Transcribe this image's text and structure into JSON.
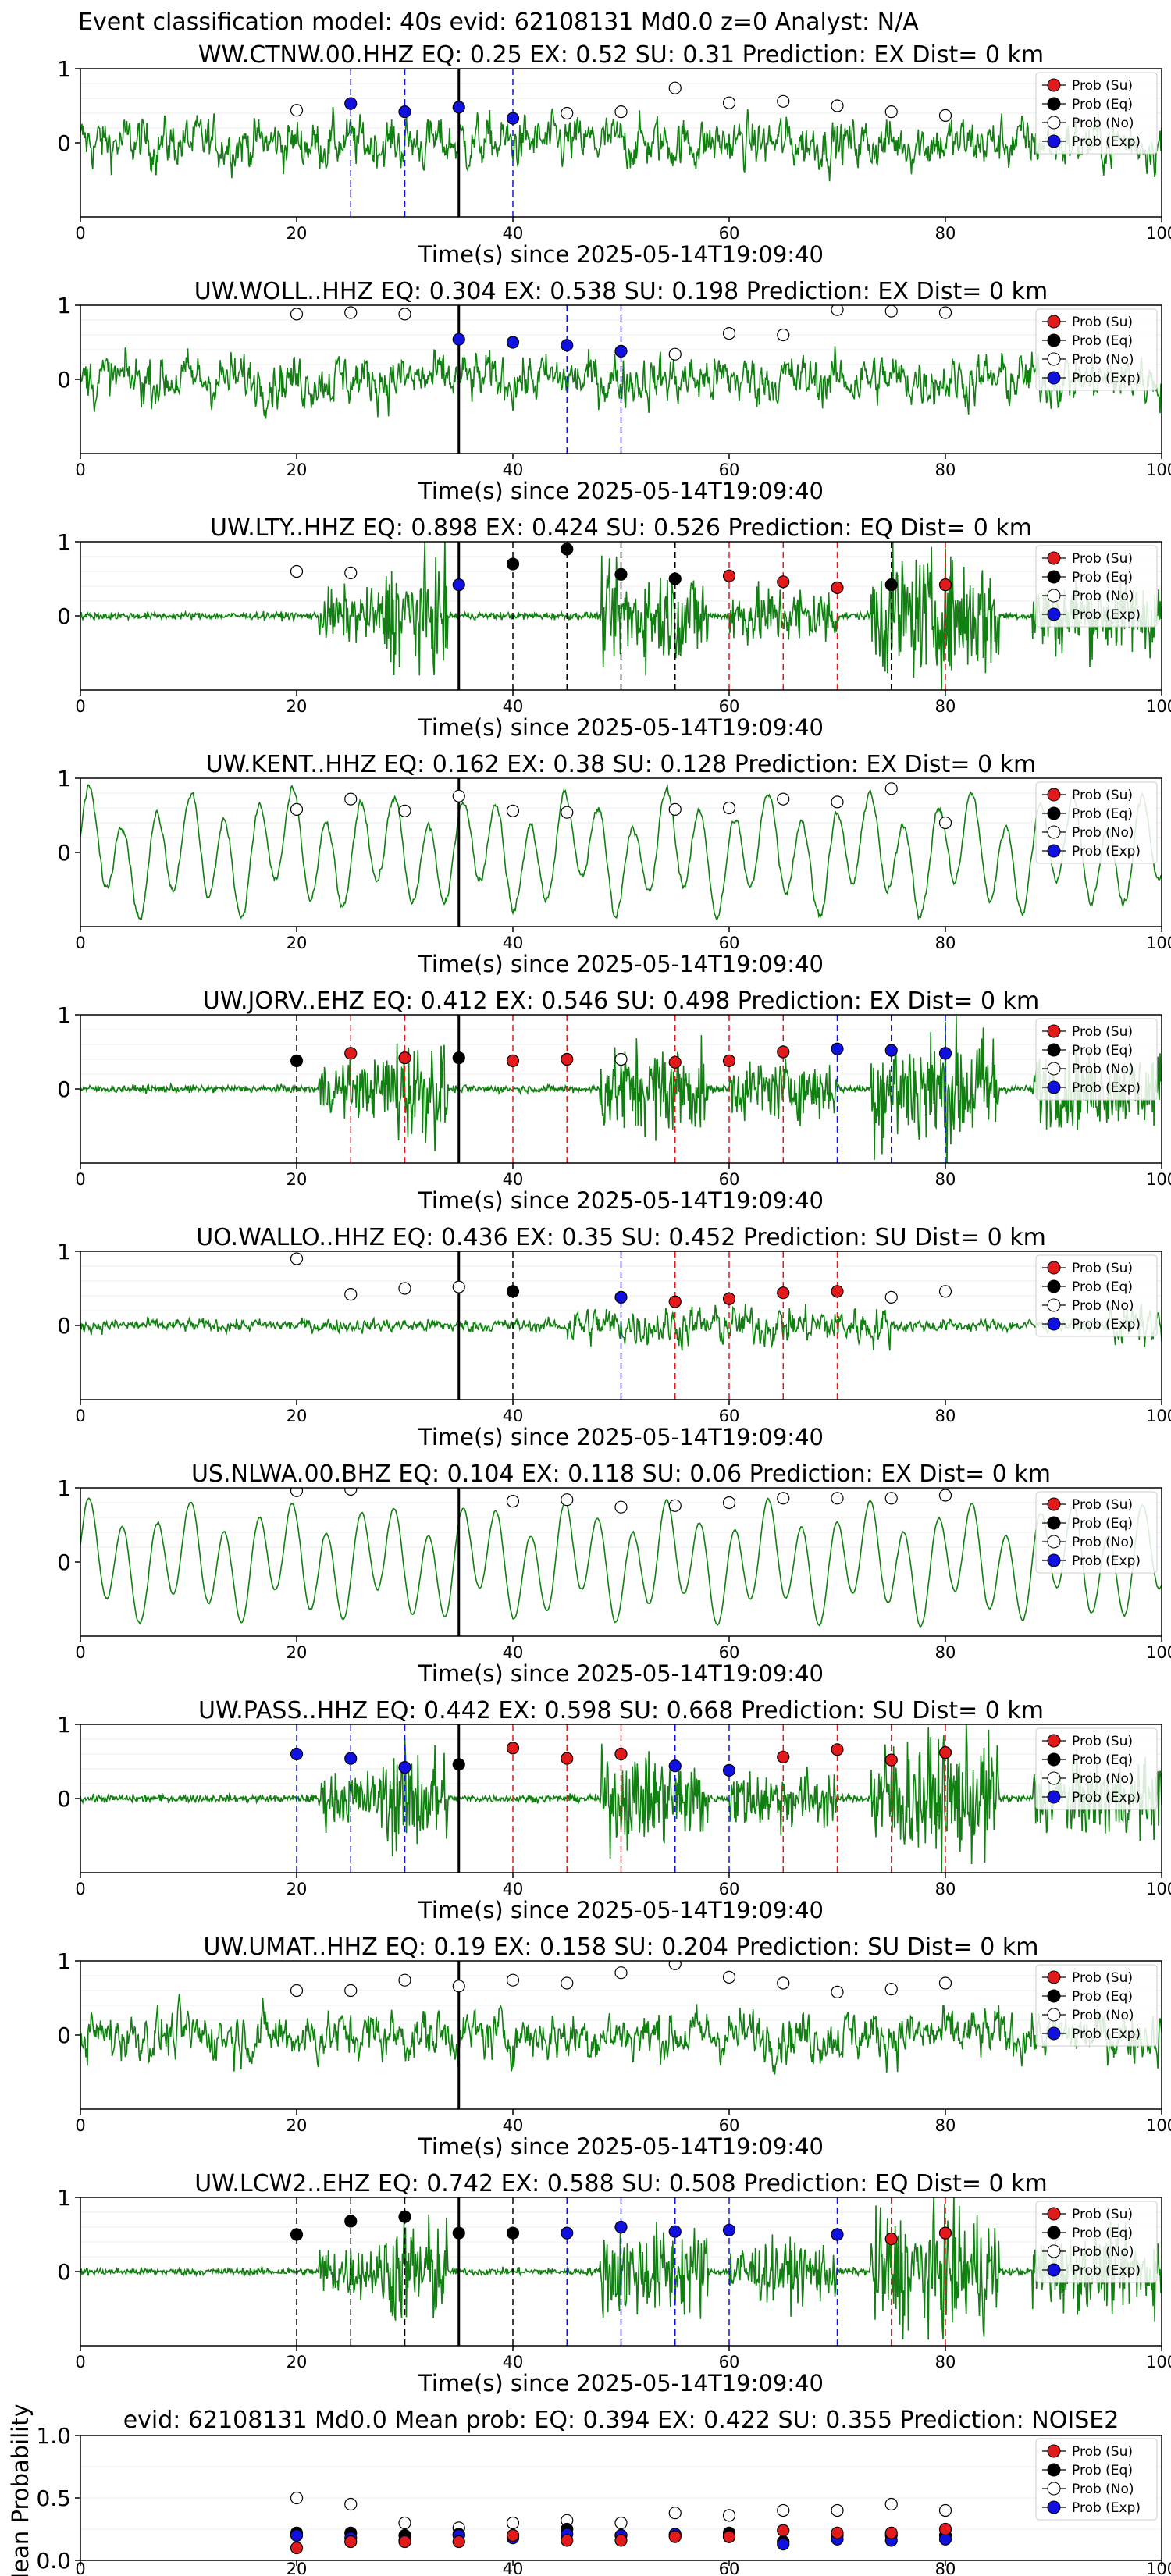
{
  "figure": {
    "suptitle": "Event classification model: 40s evid: 62108131 Md0.0 z=0 Analyst: N/A",
    "xlabel": "Time(s) since 2025-05-14T19:09:40",
    "x_ticks": [
      0,
      20,
      40,
      60,
      80,
      100
    ],
    "event_line_x": 35,
    "colors": {
      "su": "#e31a1c",
      "eq": "#000000",
      "no": "#ffffff",
      "exp": "#1010e0",
      "trace": "#108010"
    }
  },
  "legend": {
    "items": [
      "Prob (Su)",
      "Prob (Eq)",
      "Prob (No)",
      "Prob (Exp)"
    ]
  },
  "chart_data": [
    {
      "type": "scatter",
      "title": "WW.CTNW.00.HHZ   EQ: 0.25   EX: 0.52   SU: 0.31   Prediction: EX    Dist= 0 km",
      "trace_style": "noisy",
      "xlim": [
        0,
        100
      ],
      "ylim_ticks": [
        0,
        1
      ],
      "points": [
        [
          20,
          0.44,
          "no"
        ],
        [
          25,
          0.53,
          "exp"
        ],
        [
          30,
          0.42,
          "exp"
        ],
        [
          35,
          0.48,
          "exp"
        ],
        [
          40,
          0.33,
          "exp"
        ],
        [
          45,
          0.4,
          "no"
        ],
        [
          50,
          0.42,
          "no"
        ],
        [
          55,
          0.74,
          "no"
        ],
        [
          60,
          0.54,
          "no"
        ],
        [
          65,
          0.56,
          "no"
        ],
        [
          70,
          0.5,
          "no"
        ],
        [
          75,
          0.42,
          "no"
        ],
        [
          80,
          0.37,
          "no"
        ]
      ],
      "vlines": [
        [
          25,
          "exp"
        ],
        [
          30,
          "exp"
        ],
        [
          40,
          "exp"
        ]
      ]
    },
    {
      "type": "scatter",
      "title": "UW.WOLL..HHZ   EQ: 0.304  EX: 0.538  SU: 0.198   Prediction: EX    Dist= 0 km",
      "trace_style": "noisy",
      "xlim": [
        0,
        100
      ],
      "ylim_ticks": [
        0,
        1
      ],
      "points": [
        [
          20,
          0.88,
          "no"
        ],
        [
          25,
          0.9,
          "no"
        ],
        [
          30,
          0.88,
          "no"
        ],
        [
          35,
          0.54,
          "exp"
        ],
        [
          40,
          0.5,
          "exp"
        ],
        [
          45,
          0.46,
          "exp"
        ],
        [
          50,
          0.38,
          "exp"
        ],
        [
          55,
          0.34,
          "no"
        ],
        [
          60,
          0.62,
          "no"
        ],
        [
          65,
          0.6,
          "no"
        ],
        [
          70,
          0.94,
          "no"
        ],
        [
          75,
          0.92,
          "no"
        ],
        [
          80,
          0.9,
          "no"
        ]
      ],
      "vlines": [
        [
          45,
          "exp"
        ],
        [
          50,
          "exp"
        ]
      ]
    },
    {
      "type": "scatter",
      "title": "UW.LTY..HHZ   EQ: 0.898  EX: 0.424  SU: 0.526   Prediction: EQ    Dist= 0 km",
      "trace_style": "quiet_burst",
      "xlim": [
        0,
        100
      ],
      "ylim_ticks": [
        0,
        1
      ],
      "points": [
        [
          20,
          0.6,
          "no"
        ],
        [
          25,
          0.58,
          "no"
        ],
        [
          35,
          0.42,
          "exp"
        ],
        [
          40,
          0.7,
          "eq"
        ],
        [
          45,
          0.9,
          "eq"
        ],
        [
          50,
          0.56,
          "eq"
        ],
        [
          55,
          0.5,
          "eq"
        ],
        [
          60,
          0.54,
          "su"
        ],
        [
          65,
          0.46,
          "su"
        ],
        [
          70,
          0.38,
          "su"
        ],
        [
          75,
          0.42,
          "eq"
        ],
        [
          80,
          0.42,
          "su"
        ]
      ],
      "vlines": [
        [
          40,
          "eq"
        ],
        [
          45,
          "eq"
        ],
        [
          50,
          "eq"
        ],
        [
          55,
          "eq"
        ],
        [
          60,
          "su"
        ],
        [
          65,
          "su"
        ],
        [
          70,
          "su"
        ],
        [
          75,
          "eq"
        ],
        [
          80,
          "su"
        ]
      ]
    },
    {
      "type": "scatter",
      "title": "UW.KENT..HHZ   EQ: 0.162  EX: 0.38  SU: 0.128   Prediction: EX    Dist= 0 km",
      "trace_style": "wavy",
      "xlim": [
        0,
        100
      ],
      "ylim_ticks": [
        0,
        1
      ],
      "points": [
        [
          20,
          0.58,
          "no"
        ],
        [
          25,
          0.72,
          "no"
        ],
        [
          30,
          0.56,
          "no"
        ],
        [
          35,
          0.76,
          "no"
        ],
        [
          40,
          0.56,
          "no"
        ],
        [
          45,
          0.54,
          "no"
        ],
        [
          55,
          0.58,
          "no"
        ],
        [
          60,
          0.6,
          "no"
        ],
        [
          65,
          0.72,
          "no"
        ],
        [
          70,
          0.68,
          "no"
        ],
        [
          75,
          0.86,
          "no"
        ],
        [
          80,
          0.4,
          "no"
        ]
      ],
      "vlines": []
    },
    {
      "type": "scatter",
      "title": "UW.JORV..EHZ   EQ: 0.412  EX: 0.546  SU: 0.498   Prediction: EX    Dist= 0 km",
      "trace_style": "quiet_burst",
      "xlim": [
        0,
        100
      ],
      "ylim_ticks": [
        0,
        1
      ],
      "points": [
        [
          20,
          0.38,
          "eq"
        ],
        [
          25,
          0.48,
          "su"
        ],
        [
          30,
          0.42,
          "su"
        ],
        [
          35,
          0.42,
          "eq"
        ],
        [
          40,
          0.38,
          "su"
        ],
        [
          45,
          0.4,
          "su"
        ],
        [
          50,
          0.4,
          "no"
        ],
        [
          55,
          0.36,
          "su"
        ],
        [
          60,
          0.38,
          "su"
        ],
        [
          65,
          0.5,
          "su"
        ],
        [
          70,
          0.54,
          "exp"
        ],
        [
          75,
          0.52,
          "exp"
        ],
        [
          80,
          0.48,
          "exp"
        ]
      ],
      "vlines": [
        [
          20,
          "eq"
        ],
        [
          25,
          "su"
        ],
        [
          30,
          "su"
        ],
        [
          40,
          "su"
        ],
        [
          45,
          "su"
        ],
        [
          55,
          "su"
        ],
        [
          60,
          "su"
        ],
        [
          65,
          "su"
        ],
        [
          70,
          "exp"
        ],
        [
          75,
          "exp"
        ],
        [
          80,
          "exp"
        ]
      ]
    },
    {
      "type": "scatter",
      "title": "UO.WALLO..HHZ   EQ: 0.436  EX: 0.35  SU: 0.452   Prediction: SU    Dist= 0 km",
      "trace_style": "noisy_low",
      "xlim": [
        0,
        100
      ],
      "ylim_ticks": [
        0,
        1
      ],
      "points": [
        [
          20,
          0.9,
          "no"
        ],
        [
          25,
          0.42,
          "no"
        ],
        [
          30,
          0.5,
          "no"
        ],
        [
          35,
          0.52,
          "no"
        ],
        [
          40,
          0.46,
          "eq"
        ],
        [
          50,
          0.38,
          "exp"
        ],
        [
          55,
          0.32,
          "su"
        ],
        [
          60,
          0.36,
          "su"
        ],
        [
          65,
          0.44,
          "su"
        ],
        [
          70,
          0.46,
          "su"
        ],
        [
          75,
          0.38,
          "no"
        ],
        [
          80,
          0.46,
          "no"
        ]
      ],
      "vlines": [
        [
          40,
          "eq"
        ],
        [
          50,
          "exp"
        ],
        [
          55,
          "su"
        ],
        [
          60,
          "su"
        ],
        [
          65,
          "su"
        ],
        [
          70,
          "su"
        ]
      ]
    },
    {
      "type": "scatter",
      "title": "US.NLWA.00.BHZ   EQ: 0.104  EX: 0.118  SU: 0.06   Prediction: EX    Dist= 0 km",
      "trace_style": "wavy_smooth",
      "xlim": [
        0,
        100
      ],
      "ylim_ticks": [
        0,
        1
      ],
      "points": [
        [
          20,
          0.96,
          "no"
        ],
        [
          25,
          0.98,
          "no"
        ],
        [
          40,
          0.82,
          "no"
        ],
        [
          45,
          0.84,
          "no"
        ],
        [
          50,
          0.74,
          "no"
        ],
        [
          55,
          0.76,
          "no"
        ],
        [
          60,
          0.8,
          "no"
        ],
        [
          65,
          0.86,
          "no"
        ],
        [
          70,
          0.86,
          "no"
        ],
        [
          75,
          0.86,
          "no"
        ],
        [
          80,
          0.9,
          "no"
        ]
      ],
      "vlines": []
    },
    {
      "type": "scatter",
      "title": "UW.PASS..HHZ   EQ: 0.442  EX: 0.598  SU: 0.668   Prediction: SU    Dist= 0 km",
      "trace_style": "quiet_burst",
      "xlim": [
        0,
        100
      ],
      "ylim_ticks": [
        0,
        1
      ],
      "points": [
        [
          20,
          0.6,
          "exp"
        ],
        [
          25,
          0.54,
          "exp"
        ],
        [
          30,
          0.42,
          "exp"
        ],
        [
          35,
          0.46,
          "eq"
        ],
        [
          40,
          0.68,
          "su"
        ],
        [
          45,
          0.54,
          "su"
        ],
        [
          50,
          0.6,
          "su"
        ],
        [
          55,
          0.44,
          "exp"
        ],
        [
          60,
          0.38,
          "exp"
        ],
        [
          65,
          0.56,
          "su"
        ],
        [
          70,
          0.66,
          "su"
        ],
        [
          75,
          0.52,
          "su"
        ],
        [
          80,
          0.62,
          "su"
        ]
      ],
      "vlines": [
        [
          20,
          "exp"
        ],
        [
          25,
          "exp"
        ],
        [
          30,
          "exp"
        ],
        [
          40,
          "su"
        ],
        [
          45,
          "su"
        ],
        [
          50,
          "su"
        ],
        [
          55,
          "exp"
        ],
        [
          60,
          "exp"
        ],
        [
          65,
          "su"
        ],
        [
          70,
          "su"
        ],
        [
          75,
          "su"
        ],
        [
          80,
          "su"
        ]
      ]
    },
    {
      "type": "scatter",
      "title": "UW.UMAT..HHZ   EQ: 0.19  EX: 0.158  SU: 0.204   Prediction: SU    Dist= 0 km",
      "trace_style": "noisy",
      "xlim": [
        0,
        100
      ],
      "ylim_ticks": [
        0,
        1
      ],
      "points": [
        [
          20,
          0.6,
          "no"
        ],
        [
          25,
          0.6,
          "no"
        ],
        [
          30,
          0.74,
          "no"
        ],
        [
          35,
          0.66,
          "no"
        ],
        [
          40,
          0.74,
          "no"
        ],
        [
          45,
          0.7,
          "no"
        ],
        [
          50,
          0.84,
          "no"
        ],
        [
          55,
          0.96,
          "no"
        ],
        [
          60,
          0.78,
          "no"
        ],
        [
          65,
          0.7,
          "no"
        ],
        [
          70,
          0.58,
          "no"
        ],
        [
          75,
          0.62,
          "no"
        ],
        [
          80,
          0.7,
          "no"
        ]
      ],
      "vlines": []
    },
    {
      "type": "scatter",
      "title": "UW.LCW2..EHZ   EQ: 0.742  EX: 0.588  SU: 0.508   Prediction: EQ    Dist= 0 km",
      "trace_style": "quiet_burst",
      "xlim": [
        0,
        100
      ],
      "ylim_ticks": [
        0,
        1
      ],
      "points": [
        [
          20,
          0.5,
          "eq"
        ],
        [
          25,
          0.68,
          "eq"
        ],
        [
          30,
          0.74,
          "eq"
        ],
        [
          35,
          0.52,
          "eq"
        ],
        [
          40,
          0.52,
          "eq"
        ],
        [
          45,
          0.52,
          "exp"
        ],
        [
          50,
          0.6,
          "exp"
        ],
        [
          55,
          0.54,
          "exp"
        ],
        [
          60,
          0.56,
          "exp"
        ],
        [
          70,
          0.5,
          "exp"
        ],
        [
          75,
          0.44,
          "su"
        ],
        [
          80,
          0.52,
          "su"
        ]
      ],
      "vlines": [
        [
          20,
          "eq"
        ],
        [
          25,
          "eq"
        ],
        [
          30,
          "eq"
        ],
        [
          40,
          "eq"
        ],
        [
          45,
          "exp"
        ],
        [
          50,
          "exp"
        ],
        [
          55,
          "exp"
        ],
        [
          60,
          "exp"
        ],
        [
          70,
          "exp"
        ],
        [
          75,
          "su"
        ],
        [
          80,
          "su"
        ]
      ]
    }
  ],
  "mean_chart": {
    "type": "scatter",
    "title": "evid: 62108131  Md0.0   Mean prob:   EQ: 0.394  EX: 0.422  SU: 0.355   Prediction: NOISE2",
    "ylabel": "Mean Probability",
    "xlim": [
      0,
      100
    ],
    "ylim": [
      0,
      1
    ],
    "y_ticks": [
      "0.0",
      "0.5",
      "1.0"
    ],
    "points": [
      [
        20,
        0.5,
        "no"
      ],
      [
        25,
        0.45,
        "no"
      ],
      [
        30,
        0.3,
        "no"
      ],
      [
        35,
        0.26,
        "no"
      ],
      [
        40,
        0.3,
        "no"
      ],
      [
        45,
        0.32,
        "no"
      ],
      [
        50,
        0.3,
        "no"
      ],
      [
        55,
        0.38,
        "no"
      ],
      [
        60,
        0.36,
        "no"
      ],
      [
        65,
        0.4,
        "no"
      ],
      [
        70,
        0.4,
        "no"
      ],
      [
        75,
        0.45,
        "no"
      ],
      [
        80,
        0.4,
        "no"
      ],
      [
        20,
        0.22,
        "eq"
      ],
      [
        25,
        0.22,
        "eq"
      ],
      [
        30,
        0.2,
        "eq"
      ],
      [
        35,
        0.21,
        "eq"
      ],
      [
        40,
        0.2,
        "eq"
      ],
      [
        45,
        0.25,
        "eq"
      ],
      [
        50,
        0.2,
        "eq"
      ],
      [
        55,
        0.2,
        "eq"
      ],
      [
        60,
        0.22,
        "eq"
      ],
      [
        65,
        0.15,
        "eq"
      ],
      [
        70,
        0.2,
        "eq"
      ],
      [
        75,
        0.2,
        "eq"
      ],
      [
        80,
        0.2,
        "eq"
      ],
      [
        20,
        0.2,
        "exp"
      ],
      [
        25,
        0.18,
        "exp"
      ],
      [
        30,
        0.16,
        "exp"
      ],
      [
        35,
        0.2,
        "exp"
      ],
      [
        40,
        0.18,
        "exp"
      ],
      [
        45,
        0.21,
        "exp"
      ],
      [
        50,
        0.2,
        "exp"
      ],
      [
        55,
        0.21,
        "exp"
      ],
      [
        60,
        0.19,
        "exp"
      ],
      [
        65,
        0.13,
        "exp"
      ],
      [
        70,
        0.17,
        "exp"
      ],
      [
        75,
        0.16,
        "exp"
      ],
      [
        80,
        0.17,
        "exp"
      ],
      [
        20,
        0.1,
        "su"
      ],
      [
        25,
        0.15,
        "su"
      ],
      [
        30,
        0.15,
        "su"
      ],
      [
        35,
        0.15,
        "su"
      ],
      [
        40,
        0.2,
        "su"
      ],
      [
        45,
        0.16,
        "su"
      ],
      [
        50,
        0.16,
        "su"
      ],
      [
        55,
        0.19,
        "su"
      ],
      [
        60,
        0.19,
        "su"
      ],
      [
        65,
        0.24,
        "su"
      ],
      [
        70,
        0.22,
        "su"
      ],
      [
        75,
        0.22,
        "su"
      ],
      [
        80,
        0.25,
        "su"
      ]
    ]
  }
}
